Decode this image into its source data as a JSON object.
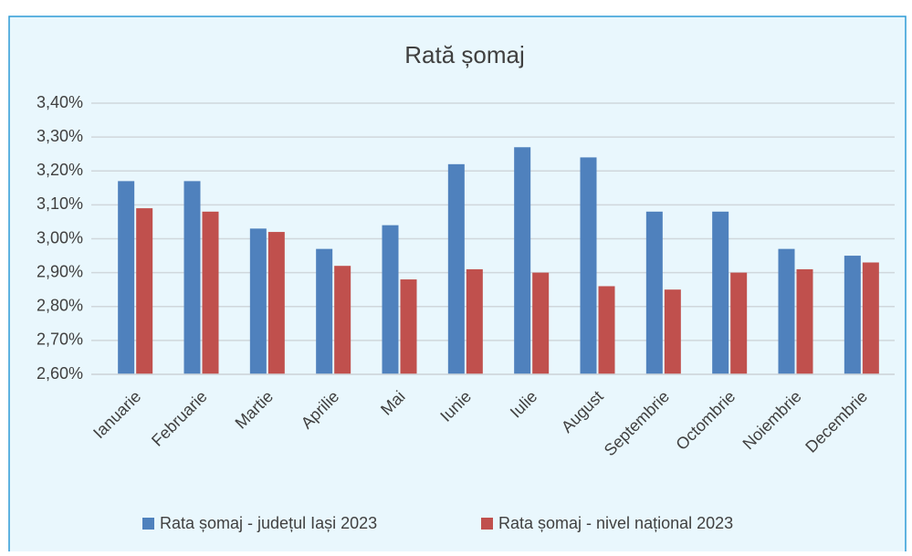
{
  "chart_data": {
    "type": "bar",
    "title": "Rată șomaj",
    "categories": [
      "Ianuarie",
      "Februarie",
      "Martie",
      "Aprilie",
      "Mai",
      "Iunie",
      "Iulie",
      "August",
      "Septembrie",
      "Octombrie",
      "Noiembrie",
      "Decembrie"
    ],
    "series": [
      {
        "name": "Rata șomaj - județul Iași 2023",
        "color": "#4f81bd",
        "values": [
          3.17,
          3.17,
          3.03,
          2.97,
          3.04,
          3.22,
          3.27,
          3.24,
          3.08,
          3.08,
          2.97,
          2.95
        ]
      },
      {
        "name": "Rata șomaj - nivel național 2023",
        "color": "#c0504d",
        "values": [
          3.09,
          3.08,
          3.02,
          2.92,
          2.88,
          2.91,
          2.9,
          2.86,
          2.85,
          2.9,
          2.91,
          2.93
        ]
      }
    ],
    "ylim": [
      2.6,
      3.4
    ],
    "yticks": [
      {
        "value": 2.6,
        "label": "2,60%"
      },
      {
        "value": 2.7,
        "label": "2,70%"
      },
      {
        "value": 2.8,
        "label": "2,80%"
      },
      {
        "value": 2.9,
        "label": "2,90%"
      },
      {
        "value": 3.0,
        "label": "3,00%"
      },
      {
        "value": 3.1,
        "label": "3,10%"
      },
      {
        "value": 3.2,
        "label": "3,20%"
      },
      {
        "value": 3.3,
        "label": "3,30%"
      },
      {
        "value": 3.4,
        "label": "3,40%"
      }
    ],
    "grid": true,
    "legend": "bottom"
  }
}
